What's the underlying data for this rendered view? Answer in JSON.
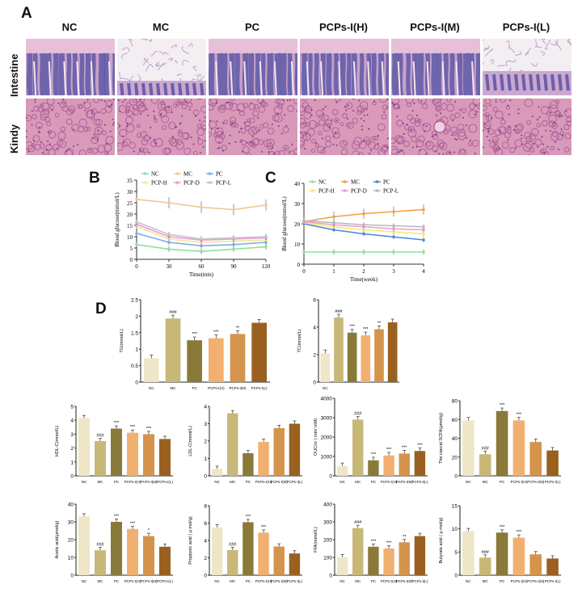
{
  "panels": {
    "a": "A",
    "b": "B",
    "c": "C",
    "d": "D"
  },
  "histology": {
    "columns": [
      "NC",
      "MC",
      "PC",
      "PCPs-I(H)",
      "PCPs-I(M)",
      "PCPs-I(L)"
    ],
    "rows": [
      "Intestine",
      "Kindy"
    ]
  },
  "chart_data": [
    {
      "id": "B",
      "type": "line",
      "xlabel": "Time(min)",
      "ylabel": "Blood glucose(mmol/L)",
      "x": [
        0,
        30,
        60,
        90,
        120
      ],
      "ylim": [
        0,
        35
      ],
      "yticks": [
        0,
        5,
        10,
        15,
        20,
        25,
        30,
        35
      ],
      "legend": [
        "NC",
        "MC",
        "PC",
        "PCP-H",
        "PCP-D",
        "PCP-L"
      ],
      "series": [
        {
          "name": "NC",
          "color": "#8fe0a0",
          "values": [
            6.5,
            4.5,
            3.5,
            4.5,
            5.5
          ]
        },
        {
          "name": "MC",
          "color": "#f0c898",
          "values": [
            26.5,
            25,
            23,
            22,
            24
          ]
        },
        {
          "name": "PC",
          "color": "#7ab0e6",
          "values": [
            11.5,
            7.5,
            6,
            6.5,
            7.5
          ]
        },
        {
          "name": "PCP-H",
          "color": "#f4e4a0",
          "values": [
            14.5,
            9,
            7.5,
            8,
            8.5
          ]
        },
        {
          "name": "PCP-D",
          "color": "#ec9ad8",
          "values": [
            15.5,
            10,
            8.5,
            9,
            9.5
          ]
        },
        {
          "name": "PCP-L",
          "color": "#c4c4c4",
          "values": [
            16.5,
            11,
            9,
            9.5,
            10
          ]
        }
      ]
    },
    {
      "id": "C",
      "type": "line",
      "xlabel": "Time(week)",
      "ylabel": "Blood glucose(mmol/L)",
      "x": [
        0,
        1,
        2,
        3,
        4
      ],
      "ylim": [
        0,
        40
      ],
      "yticks": [
        0,
        10,
        20,
        30,
        40
      ],
      "legend": [
        "NC",
        "MC",
        "PC",
        "PCP-H",
        "PCP-D",
        "PCP-L"
      ],
      "series": [
        {
          "name": "NC",
          "color": "#8fe0a0",
          "values": [
            6,
            6,
            6,
            6,
            6
          ]
        },
        {
          "name": "MC",
          "color": "#f4a040",
          "values": [
            21,
            23.5,
            25,
            26,
            27
          ]
        },
        {
          "name": "PC",
          "color": "#4a88d8",
          "values": [
            20,
            17,
            15,
            13.5,
            12
          ]
        },
        {
          "name": "PCP-H",
          "color": "#f4ea70",
          "values": [
            20.5,
            18.5,
            17,
            16,
            15
          ]
        },
        {
          "name": "PCP-D",
          "color": "#ec9ad8",
          "values": [
            21,
            19.5,
            18.5,
            17.5,
            17
          ]
        },
        {
          "name": "PCP-L",
          "color": "#b8b8b8",
          "values": [
            21.5,
            20.5,
            19.5,
            19,
            18.5
          ]
        }
      ]
    },
    {
      "id": "TG",
      "type": "bar",
      "ylabel": "TG(mmol/L)",
      "ylim": [
        0,
        2.5
      ],
      "yticks": [
        0.0,
        0.5,
        1.0,
        1.5,
        2.0,
        2.5
      ],
      "categories": [
        "NC",
        "MC",
        "PC",
        "PCPs-I(H)",
        "PCPs-I(M)",
        "PCPs-I(L)"
      ],
      "values": [
        0.72,
        1.93,
        1.27,
        1.33,
        1.46,
        1.8
      ],
      "marks": [
        "",
        "###",
        "***",
        "***",
        "**",
        ""
      ]
    },
    {
      "id": "TC",
      "type": "bar",
      "ylabel": "TC(mmol/L)",
      "ylim": [
        0,
        6
      ],
      "yticks": [
        0,
        2,
        4,
        6
      ],
      "categories": [
        "NC",
        "",
        "",
        "",
        "",
        ""
      ],
      "values": [
        2.1,
        4.7,
        3.6,
        3.4,
        3.85,
        4.35
      ],
      "marks": [
        "",
        "###",
        "***",
        "***",
        "**",
        ""
      ]
    },
    {
      "id": "HDL",
      "type": "bar",
      "ylabel": "HDL-C(mmol/L)",
      "ylim": [
        0,
        5
      ],
      "yticks": [
        0,
        1,
        2,
        3,
        4,
        5
      ],
      "categories": [
        "NC",
        "MC",
        "PC",
        "PCPs-I(H)",
        "PCPs-I(M)",
        "PCPs-I(L)"
      ],
      "values": [
        4.15,
        2.5,
        3.4,
        3.1,
        3.0,
        2.65
      ],
      "marks": [
        "",
        "###",
        "***",
        "***",
        "***",
        ""
      ]
    },
    {
      "id": "LDL",
      "type": "bar",
      "ylabel": "LDL-C(mmol/L)",
      "ylim": [
        0,
        4
      ],
      "yticks": [
        0,
        1,
        2,
        3,
        4
      ],
      "categories": [
        "NC",
        "MC",
        "PC",
        "PCPs-I(H)",
        "PCPs-I(M)",
        "PCPs-I(L)"
      ],
      "values": [
        0.4,
        3.6,
        1.3,
        1.95,
        2.75,
        3.0
      ],
      "marks": [
        "",
        "",
        "",
        "",
        "",
        ""
      ]
    },
    {
      "id": "OUC",
      "type": "bar",
      "ylabel": "OUC/cr ( min/ mM)",
      "ylim": [
        0,
        4000
      ],
      "yticks": [
        0,
        1000,
        2000,
        3000,
        4000
      ],
      "categories": [
        "NC",
        "MC",
        "PC",
        "PCPs-I(H)",
        "PCPs-I(M)",
        "PCPs-I(L)"
      ],
      "values": [
        500,
        2900,
        800,
        1050,
        1150,
        1280
      ],
      "marks": [
        "",
        "###",
        "***",
        "***",
        "***",
        "***"
      ]
    },
    {
      "id": "SCFA",
      "type": "bar",
      "ylabel": "The caecal SCFA(μmol/g)",
      "ylim": [
        0,
        80
      ],
      "yticks": [
        0,
        20,
        40,
        60,
        80
      ],
      "categories": [
        "NC",
        "MC",
        "PC",
        "PCPs-I(H)",
        "PCPs-I(M)",
        "PCPs-I(L)"
      ],
      "values": [
        59,
        23,
        69,
        59,
        36,
        27
      ],
      "marks": [
        "",
        "###",
        "***",
        "***",
        "",
        ""
      ]
    },
    {
      "id": "Acetic",
      "type": "bar",
      "ylabel": "Acetic acid(μmol/g)",
      "ylim": [
        0,
        40
      ],
      "yticks": [
        0,
        10,
        20,
        30,
        40
      ],
      "categories": [
        "NC",
        "MC",
        "PC",
        "PCPs-I(H)",
        "PCPs-I(M)",
        "PCPs-I(L)"
      ],
      "values": [
        33,
        14,
        30,
        26,
        22,
        16
      ],
      "marks": [
        "",
        "###",
        "***",
        "***",
        "*",
        ""
      ]
    },
    {
      "id": "Propionic",
      "type": "bar",
      "ylabel": "Propionic acid ( μ mol/g)",
      "ylim": [
        0,
        8
      ],
      "yticks": [
        0,
        2,
        4,
        6,
        8
      ],
      "categories": [
        "NC",
        "MC",
        "PC",
        "PCPs-I(H)",
        "PCPs-I(M)",
        "PCPs-I(L)"
      ],
      "values": [
        5.5,
        2.9,
        6.1,
        4.9,
        3.3,
        2.5
      ],
      "marks": [
        "",
        "###",
        "***",
        "***",
        "",
        ""
      ]
    },
    {
      "id": "FFA",
      "type": "bar",
      "ylabel": "FFA(mmol/L)",
      "ylim": [
        0,
        400
      ],
      "yticks": [
        0,
        100,
        200,
        300,
        400
      ],
      "categories": [
        "NC",
        "MC",
        "PC",
        "PCPs-I(H)",
        "PCPs-I(M)",
        "PCPs-I(L)"
      ],
      "values": [
        100,
        265,
        160,
        150,
        185,
        220
      ],
      "marks": [
        "",
        "###",
        "***",
        "***",
        "**",
        ""
      ]
    },
    {
      "id": "Butyrate",
      "type": "bar",
      "ylabel": "Butyrate acid ( μ mol/g)",
      "ylim": [
        0,
        15
      ],
      "yticks": [
        0,
        5,
        10,
        15
      ],
      "categories": [
        "NC",
        "MC",
        "PC",
        "PCPs-I(H)",
        "PCPs-I(M)",
        "PCPs-I(L)"
      ],
      "values": [
        9.5,
        3.8,
        9.2,
        8.1,
        4.5,
        3.6
      ],
      "marks": [
        "",
        "###",
        "***",
        "***",
        "",
        ""
      ]
    }
  ],
  "bar_colors": [
    "#efe6c8",
    "#c8b878",
    "#8a7a3a",
    "#f2b070",
    "#d4944c",
    "#9a6020"
  ]
}
